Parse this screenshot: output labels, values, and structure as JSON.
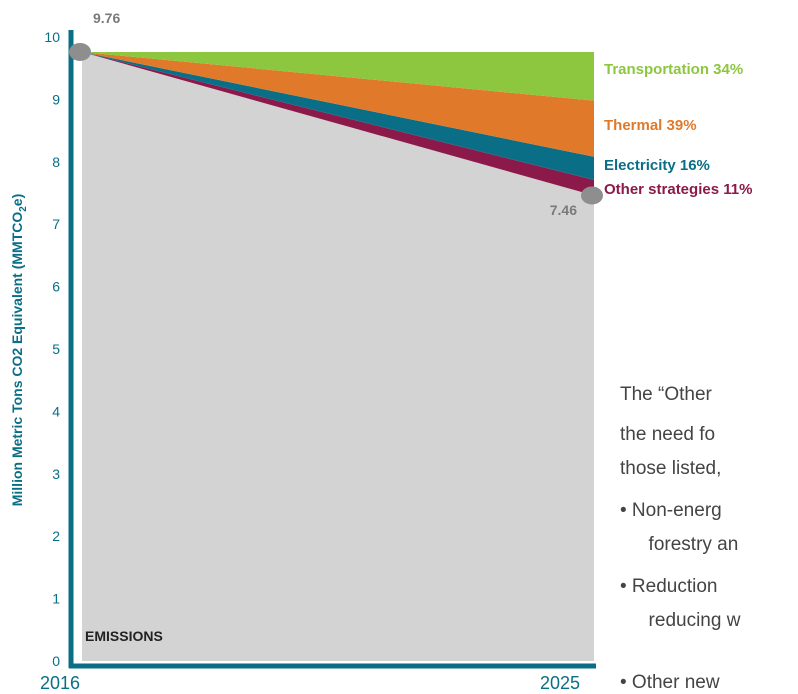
{
  "chart_data": {
    "type": "area",
    "ylabel": "Million Metric Tons CO2 Equivalent (MMTCO",
    "ylabel_sub": "2",
    "ylabel_end": "e)",
    "x": [
      "2016",
      "2025"
    ],
    "ylim": [
      0,
      10
    ],
    "yticks": [
      "0",
      "1",
      "2",
      "3",
      "4",
      "5",
      "6",
      "7",
      "8",
      "9",
      "10"
    ],
    "emissions": {
      "name": "EMISSIONS",
      "start": 9.76,
      "end": 7.46,
      "color": "#d3d3d3"
    },
    "wedges": [
      {
        "name": "Other strategies 11%",
        "end_value": 7.46,
        "color": "#8b1a4a"
      },
      {
        "name": "Electricity 16%",
        "end_value": 7.71,
        "color": "#0a6f86"
      },
      {
        "name": "Thermal 39%",
        "end_value": 8.08,
        "color": "#e07a2a"
      },
      {
        "name": "Transportation 34%",
        "end_value": 8.98,
        "color": "#8dc63f"
      }
    ],
    "top_value": 9.76,
    "points": [
      {
        "x": "2016",
        "y": 9.76,
        "label": "9.76"
      },
      {
        "x": "2025",
        "y": 7.46,
        "label": "7.46"
      }
    ]
  },
  "text_panel": {
    "lines": [
      "The “Other",
      "the need fo",
      "those listed,",
      "• Non-energ",
      "  forestry an",
      "• Reduction",
      "  reducing w",
      "• Other new"
    ]
  }
}
